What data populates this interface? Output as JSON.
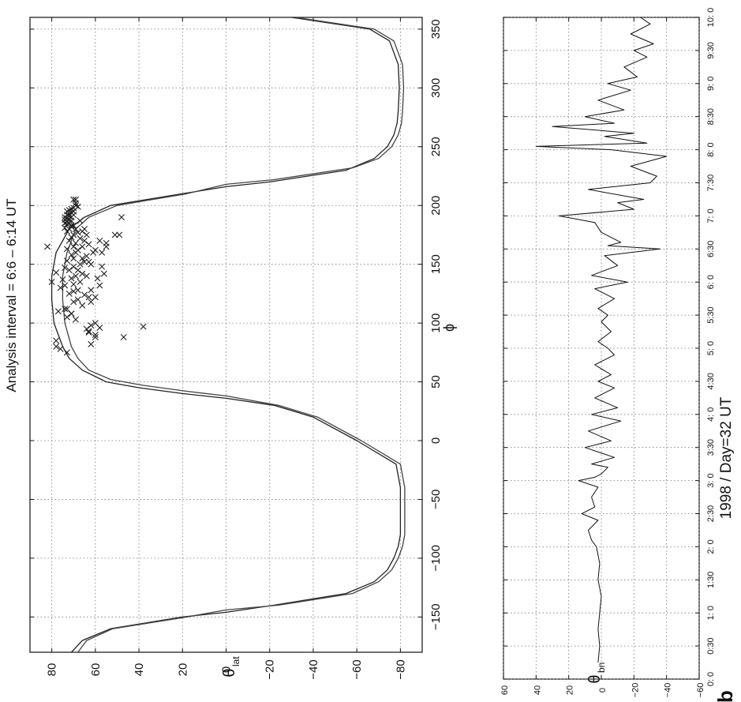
{
  "figure": {
    "panel_label": "b"
  },
  "chart_data": [
    {
      "type": "scatter",
      "title": "Analysis interval = 6:6 – 6:14 UT",
      "xlabel": "ϕ",
      "ylabel": "θ",
      "ylabel_sub": "lat",
      "xlim": [
        -180,
        360
      ],
      "ylim": [
        -90,
        90
      ],
      "xticks": [
        -150,
        -100,
        -50,
        0,
        50,
        100,
        150,
        200,
        250,
        300,
        350
      ],
      "xtick_labels": [
        "−150",
        "−100",
        "−50",
        "0",
        "50",
        "100",
        "150",
        "200",
        "250",
        "300",
        "350"
      ],
      "yticks": [
        80,
        60,
        40,
        20,
        0,
        -20,
        -40,
        -60,
        -80
      ],
      "ytick_labels": [
        "80",
        "60",
        "40",
        "20",
        "0",
        "−20",
        "−40",
        "−60",
        "−80"
      ],
      "grid": true,
      "series": [
        {
          "style": "solid",
          "color": "#222222",
          "x": [
            -180,
            -170,
            -160,
            -150,
            -146,
            -140,
            -130,
            -120,
            -110,
            -100,
            -90,
            -80,
            -70,
            -60,
            -40,
            -20,
            0,
            20,
            30,
            36,
            40,
            45,
            50,
            60,
            70,
            80,
            100,
            120,
            140,
            160,
            180,
            190,
            200,
            210,
            216,
            220,
            230,
            240,
            250,
            260,
            270,
            280,
            300,
            320,
            340,
            350,
            360
          ],
          "y": [
            71,
            66,
            53,
            20,
            0,
            -22,
            -55,
            -68,
            -74,
            -77,
            -79,
            -80,
            -80,
            -80,
            -80,
            -78,
            -60,
            -40,
            -22,
            0,
            20,
            40,
            55,
            66,
            72,
            75,
            79,
            80,
            80,
            78,
            72,
            65,
            53,
            20,
            0,
            -20,
            -55,
            -68,
            -74,
            -77,
            -78.5,
            -79,
            -79.5,
            -79,
            -75,
            -66,
            -30
          ]
        },
        {
          "style": "solid",
          "color": "#444444",
          "x": [
            -180,
            -170,
            -160,
            -150,
            -144,
            -140,
            -130,
            -120,
            -110,
            -100,
            -90,
            -80,
            -70,
            -60,
            -40,
            -20,
            0,
            20,
            30,
            38,
            42,
            47,
            52,
            60,
            70,
            80,
            100,
            120,
            140,
            160,
            180,
            190,
            200,
            210,
            218,
            222,
            232,
            240,
            250,
            260,
            270,
            280,
            300,
            320,
            340,
            350,
            360
          ],
          "y": [
            68,
            64,
            52,
            18,
            0,
            -24,
            -58,
            -70,
            -76,
            -79,
            -81,
            -82,
            -82,
            -82,
            -82,
            -80,
            -62,
            -42,
            -24,
            0,
            18,
            38,
            53,
            63,
            68,
            71,
            74,
            75,
            75,
            73,
            69,
            63,
            50,
            18,
            0,
            -22,
            -58,
            -70,
            -76,
            -79,
            -80.5,
            -81,
            -81.5,
            -81,
            -77,
            -68,
            -32
          ]
        },
        {
          "style": "points",
          "marker": "x",
          "color": "#222222",
          "x": [
            75,
            78,
            80,
            82,
            88,
            90,
            93,
            95,
            97,
            98,
            100,
            103,
            105,
            108,
            110,
            112,
            115,
            118,
            120,
            122,
            124,
            125,
            127,
            128,
            130,
            132,
            133,
            135,
            135,
            137,
            138,
            140,
            140,
            142,
            143,
            145,
            145,
            147,
            148,
            150,
            150,
            152,
            153,
            155,
            155,
            157,
            158,
            160,
            160,
            162,
            163,
            165,
            165,
            167,
            168,
            170,
            170,
            172,
            173,
            175,
            175,
            177,
            178,
            180,
            180,
            181,
            182,
            183,
            184,
            185,
            185,
            186,
            187,
            188,
            188,
            189,
            190,
            190,
            191,
            192,
            192,
            193,
            194,
            195,
            195,
            196,
            197,
            198,
            199,
            200,
            202,
            205,
            160,
            165,
            170,
            175,
            148,
            152,
            162,
            168,
            138,
            142,
            128,
            132,
            118,
            122,
            112,
            108,
            96,
            92,
            88,
            85,
            165,
            180,
            175,
            190,
            205,
            187,
            183,
            178
          ],
          "y": [
            73,
            76,
            78,
            62,
            47,
            60,
            63,
            64,
            38,
            62,
            60,
            69,
            73,
            71,
            77,
            74,
            66,
            70,
            68,
            63,
            65,
            72,
            70,
            68,
            76,
            74,
            70,
            67,
            80,
            75,
            71,
            69,
            64,
            66,
            78,
            72,
            68,
            74,
            70,
            62,
            67,
            65,
            73,
            70,
            66,
            64,
            71,
            69,
            61,
            68,
            73,
            66,
            70,
            63,
            69,
            72,
            65,
            67,
            71,
            70,
            64,
            68,
            66,
            72,
            69,
            74,
            71,
            70,
            73,
            72,
            74,
            73,
            71,
            74,
            72,
            73,
            71,
            74,
            72,
            73,
            70,
            72,
            71,
            73,
            70,
            72,
            71,
            70,
            68,
            69,
            69,
            69,
            57,
            55,
            58,
            51,
            57,
            63,
            60,
            55,
            59,
            56,
            62,
            58,
            62,
            60,
            73,
            71,
            58,
            63,
            60,
            78,
            82,
            65,
            49,
            48,
            70,
            67,
            71,
            73
          ]
        }
      ]
    },
    {
      "type": "line",
      "title": "",
      "xlabel": "1998 / Day=32  UT",
      "ylabel": "θ",
      "ylabel_sub": "bn",
      "xlim": [
        0,
        10
      ],
      "ylim": [
        -60,
        60
      ],
      "xticks": [
        0,
        0.5,
        1,
        1.5,
        2,
        2.5,
        3,
        3.5,
        4,
        4.5,
        5,
        5.5,
        6,
        6.5,
        7,
        7.5,
        8,
        8.5,
        9,
        9.5,
        10
      ],
      "xtick_labels": [
        "0: 0",
        "0:30",
        "1: 0",
        "1:30",
        "2: 0",
        "2:30",
        "3: 0",
        "3:30",
        "4: 0",
        "4:30",
        "5: 0",
        "5:30",
        "6: 0",
        "6:30",
        "7: 0",
        "7:30",
        "8: 0",
        "8:30",
        "9: 0",
        "9:30",
        "10: 0"
      ],
      "yticks": [
        60,
        40,
        20,
        0,
        -20,
        -40,
        -60
      ],
      "ytick_labels": [
        "60",
        "40",
        "20",
        "0",
        "−20",
        "−40",
        "−60"
      ],
      "grid": true,
      "series": [
        {
          "style": "solid",
          "color": "#111111",
          "x": [
            0.25,
            0.5,
            0.75,
            1.0,
            1.25,
            1.5,
            1.75,
            2.0,
            2.1,
            2.25,
            2.4,
            2.5,
            2.6,
            2.75,
            2.9,
            3.0,
            3.05,
            3.1,
            3.2,
            3.25,
            3.35,
            3.5,
            3.6,
            3.75,
            3.9,
            4.0,
            4.1,
            4.25,
            4.4,
            4.5,
            4.6,
            4.75,
            4.9,
            5.0,
            5.1,
            5.25,
            5.4,
            5.5,
            5.6,
            5.75,
            5.9,
            6.0,
            6.1,
            6.25,
            6.4,
            6.5,
            6.55,
            6.6,
            6.75,
            6.9,
            7.0,
            7.1,
            7.2,
            7.25,
            7.4,
            7.5,
            7.6,
            7.75,
            7.9,
            8.0,
            8.05,
            8.1,
            8.2,
            8.25,
            8.35,
            8.4,
            8.5,
            8.6,
            8.75,
            8.9,
            9.0,
            9.1,
            9.25,
            9.4,
            9.5,
            9.6,
            9.75,
            9.9,
            10.0
          ],
          "y": [
            2,
            1,
            2,
            1,
            0,
            2,
            1,
            3,
            6,
            8,
            2,
            12,
            4,
            6,
            2,
            14,
            4,
            0,
            -4,
            6,
            -8,
            10,
            -6,
            8,
            -12,
            6,
            -10,
            4,
            -8,
            2,
            -6,
            4,
            -8,
            -4,
            2,
            -6,
            0,
            -4,
            2,
            -8,
            4,
            -16,
            6,
            -10,
            -2,
            -36,
            -4,
            -12,
            0,
            4,
            26,
            -20,
            -10,
            -26,
            8,
            -30,
            -34,
            -18,
            -40,
            -6,
            40,
            -28,
            -2,
            -20,
            30,
            -8,
            10,
            -14,
            2,
            -18,
            -4,
            -22,
            -14,
            -28,
            -20,
            -32,
            -18,
            -30,
            -24
          ]
        }
      ]
    }
  ]
}
